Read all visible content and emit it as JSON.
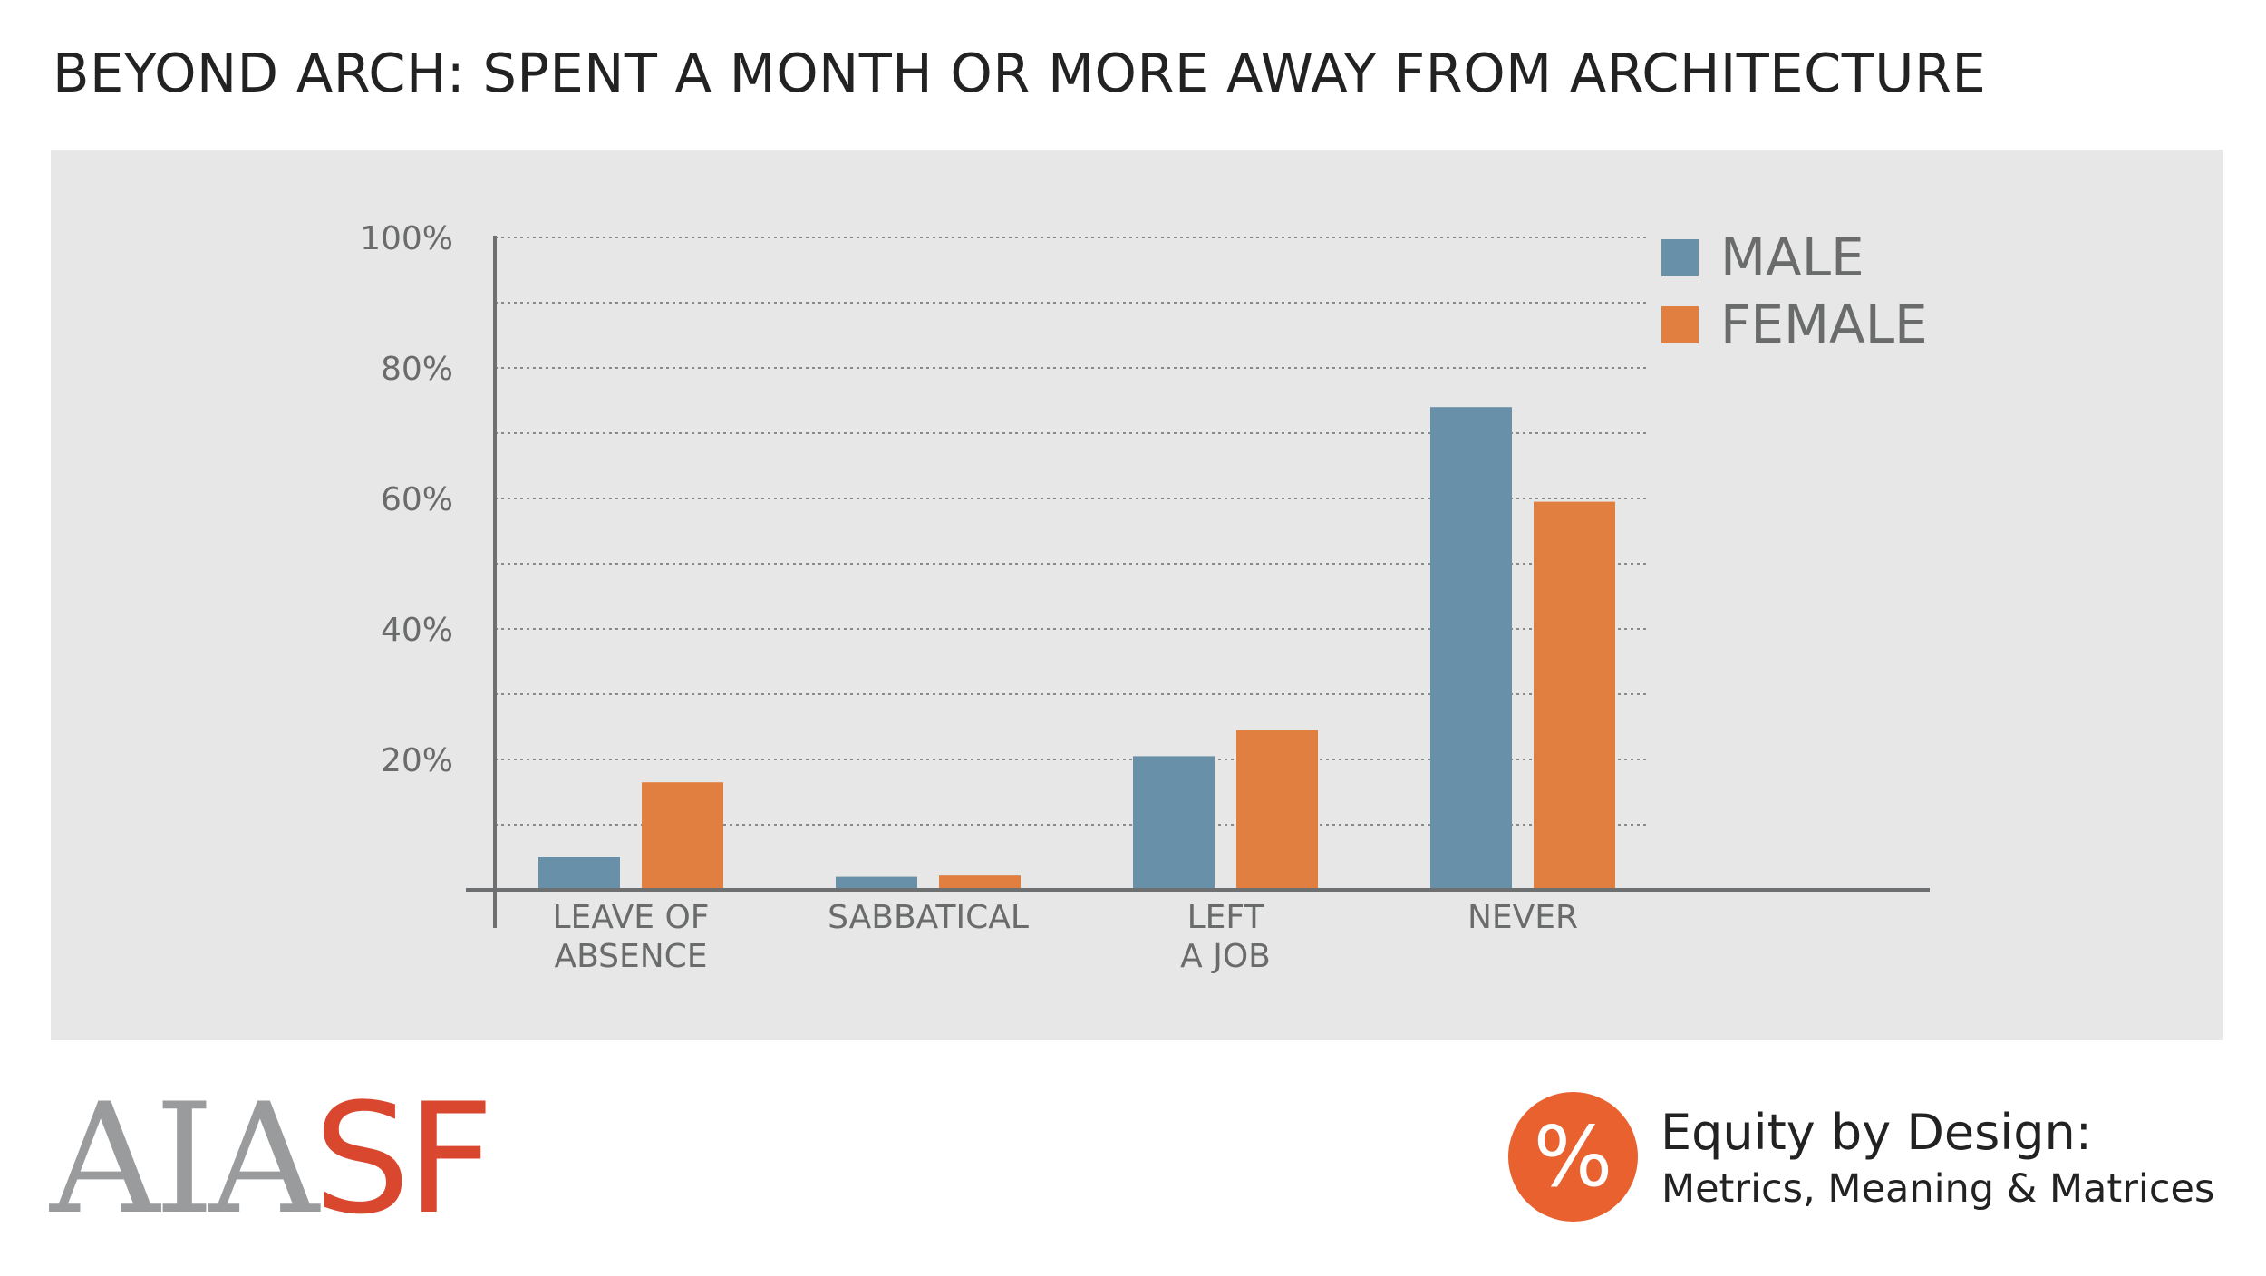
{
  "title": "BEYOND ARCH: SPENT A MONTH OR MORE AWAY FROM ARCHITECTURE",
  "chart_data": {
    "type": "bar",
    "title": "BEYOND ARCH: SPENT A MONTH OR MORE AWAY FROM ARCHITECTURE",
    "xlabel": "",
    "ylabel": "",
    "ylim": [
      0,
      100
    ],
    "y_ticks": [
      {
        "value": 100,
        "label": "100%"
      },
      {
        "value": 80,
        "label": "80%"
      },
      {
        "value": 60,
        "label": "60%"
      },
      {
        "value": 40,
        "label": "40%"
      },
      {
        "value": 20,
        "label": "20%"
      }
    ],
    "gridlines_every": 10,
    "grid": true,
    "legend_position": "top-right",
    "categories": [
      {
        "line1": "LEAVE OF",
        "line2": "ABSENCE"
      },
      {
        "line1": "SABBATICAL",
        "line2": ""
      },
      {
        "line1": "LEFT",
        "line2": "A JOB"
      },
      {
        "line1": "NEVER",
        "line2": ""
      }
    ],
    "series": [
      {
        "name": "MALE",
        "color": "#6890a8",
        "values": [
          5,
          2,
          20.5,
          74
        ]
      },
      {
        "name": "FEMALE",
        "color": "#e07f40",
        "values": [
          16.5,
          2.2,
          24.5,
          59.5
        ]
      }
    ]
  },
  "footer": {
    "logo_part1": "AIA",
    "logo_part2": "SF",
    "badge_symbol": "%",
    "brand_title": "Equity by Design:",
    "brand_subtitle": "Metrics, Meaning & Matrices"
  }
}
